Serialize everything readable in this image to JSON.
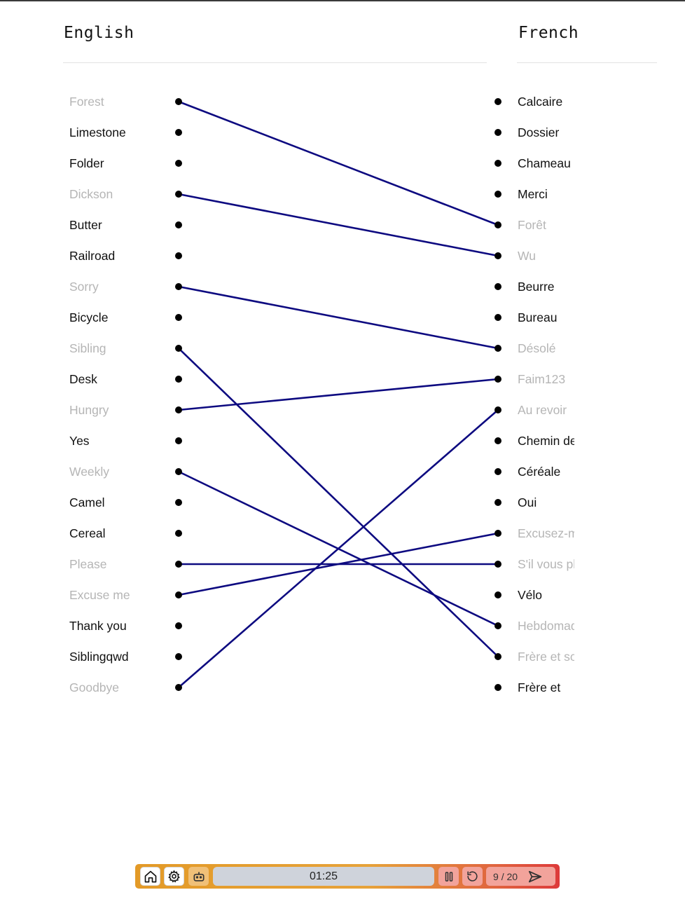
{
  "headers": {
    "left": "English",
    "right": "French"
  },
  "left_words": [
    {
      "text": "Forest",
      "matched": true
    },
    {
      "text": "Limestone",
      "matched": false
    },
    {
      "text": "Folder",
      "matched": false
    },
    {
      "text": "Dickson",
      "matched": true
    },
    {
      "text": "Butter",
      "matched": false
    },
    {
      "text": "Railroad",
      "matched": false
    },
    {
      "text": "Sorry",
      "matched": true
    },
    {
      "text": "Bicycle",
      "matched": false
    },
    {
      "text": "Sibling",
      "matched": true
    },
    {
      "text": "Desk",
      "matched": false
    },
    {
      "text": "Hungry",
      "matched": true
    },
    {
      "text": "Yes",
      "matched": false
    },
    {
      "text": "Weekly",
      "matched": true
    },
    {
      "text": "Camel",
      "matched": false
    },
    {
      "text": "Cereal",
      "matched": false
    },
    {
      "text": "Please",
      "matched": true
    },
    {
      "text": "Excuse me",
      "matched": true
    },
    {
      "text": "Thank you",
      "matched": false
    },
    {
      "text": "Siblingqwd",
      "matched": false
    },
    {
      "text": "Goodbye",
      "matched": true
    }
  ],
  "right_words": [
    {
      "text": "Calcaire",
      "matched": false
    },
    {
      "text": "Dossier",
      "matched": false
    },
    {
      "text": "Chameau",
      "matched": false
    },
    {
      "text": "Merci",
      "matched": false
    },
    {
      "text": "Forêt",
      "matched": true
    },
    {
      "text": "Wu",
      "matched": true
    },
    {
      "text": "Beurre",
      "matched": false
    },
    {
      "text": "Bureau",
      "matched": false
    },
    {
      "text": "Désolé",
      "matched": true
    },
    {
      "text": "Faim123",
      "matched": true
    },
    {
      "text": "Au revoir",
      "matched": true
    },
    {
      "text": "Chemin de fer",
      "matched": false
    },
    {
      "text": "Céréale",
      "matched": false
    },
    {
      "text": "Oui",
      "matched": false
    },
    {
      "text": "Excusez-moi",
      "matched": true
    },
    {
      "text": "S'il vous plaît",
      "matched": true
    },
    {
      "text": "Vélo",
      "matched": false
    },
    {
      "text": "Hebdomadaire",
      "matched": true
    },
    {
      "text": "Frère et sœur",
      "matched": true
    },
    {
      "text": "Frère et",
      "matched": false
    }
  ],
  "connections": [
    [
      0,
      4
    ],
    [
      3,
      5
    ],
    [
      6,
      8
    ],
    [
      8,
      18
    ],
    [
      10,
      9
    ],
    [
      12,
      17
    ],
    [
      15,
      15
    ],
    [
      16,
      14
    ],
    [
      19,
      10
    ]
  ],
  "colors": {
    "line": "#0d0a80",
    "dot": "#000000",
    "active_text": "#111111",
    "matched_text": "#b5b5b5"
  },
  "toolbar": {
    "timer": "01:25",
    "progress_current": "9",
    "progress_separator": "/",
    "progress_total": "20",
    "icons": [
      "home-icon",
      "gear-icon",
      "robot-icon",
      "pause-icon",
      "restart-icon",
      "send-icon"
    ]
  }
}
